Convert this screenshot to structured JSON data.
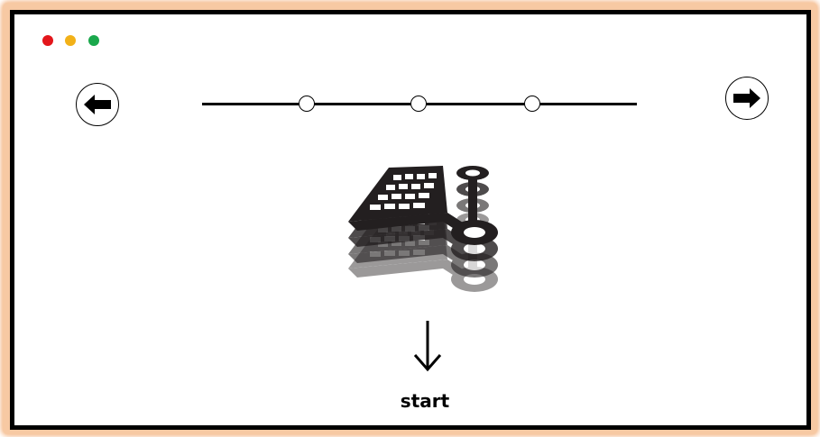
{
  "window": {
    "controls": [
      {
        "name": "close",
        "color": "#e3161b"
      },
      {
        "name": "minimize",
        "color": "#f2b118"
      },
      {
        "name": "maximize",
        "color": "#1aa84c"
      }
    ]
  },
  "navigation": {
    "prev_icon": "arrow-left-icon",
    "next_icon": "arrow-right-icon"
  },
  "timeline": {
    "step_count": 3
  },
  "illustration": {
    "icon": "shopping-cart-icon"
  },
  "flow": {
    "arrow_icon": "arrow-down-icon",
    "start_label": "start"
  },
  "colors": {
    "frame_border": "#000000",
    "glow": "#f7c9a3"
  }
}
